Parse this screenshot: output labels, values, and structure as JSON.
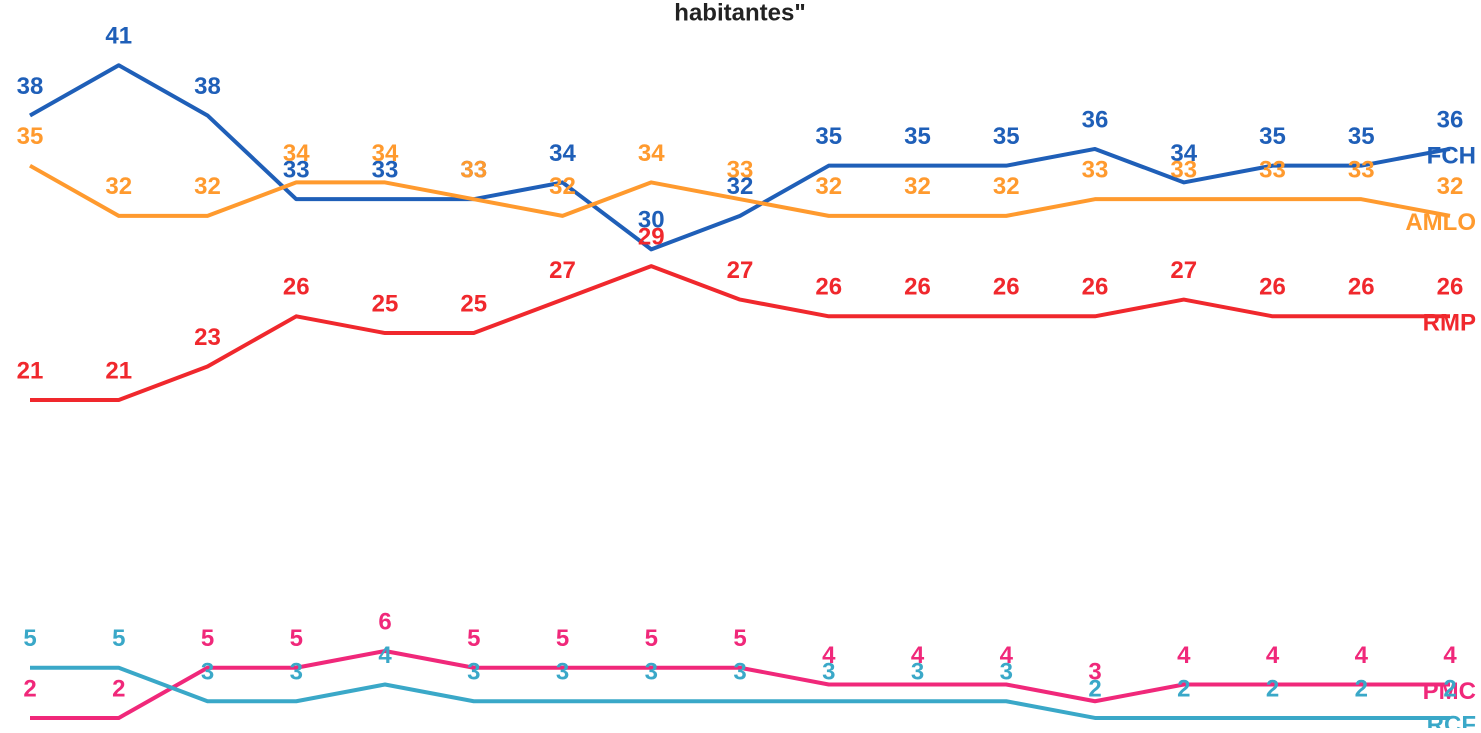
{
  "chart_data": {
    "type": "line",
    "title": "habitantes\"",
    "ylim": [
      1.4,
      44.9
    ],
    "series": [
      {
        "name": "FCH",
        "color": "#1f5fb8",
        "values": [
          38,
          41,
          38,
          33,
          33,
          33,
          34,
          30,
          32,
          35,
          35,
          35,
          36,
          34,
          35,
          35,
          36
        ]
      },
      {
        "name": "AMLO",
        "color": "#ff9a2e",
        "values": [
          35,
          32,
          32,
          34,
          34,
          33,
          32,
          34,
          33,
          32,
          32,
          32,
          33,
          33,
          33,
          33,
          32
        ]
      },
      {
        "name": "RMP",
        "color": "#f0282d",
        "values": [
          21,
          21,
          23,
          26,
          25,
          25,
          27,
          29,
          27,
          26,
          26,
          26,
          26,
          27,
          26,
          26,
          26
        ]
      },
      {
        "name": "PMC",
        "color": "#f0287a",
        "values": [
          2,
          2,
          5,
          5,
          6,
          5,
          5,
          5,
          5,
          4,
          4,
          4,
          3,
          4,
          4,
          4,
          4
        ]
      },
      {
        "name": "RCF",
        "color": "#3aa8c8",
        "values": [
          5,
          5,
          3,
          3,
          4,
          3,
          3,
          3,
          3,
          3,
          3,
          3,
          2,
          2,
          2,
          2,
          2
        ]
      }
    ]
  }
}
